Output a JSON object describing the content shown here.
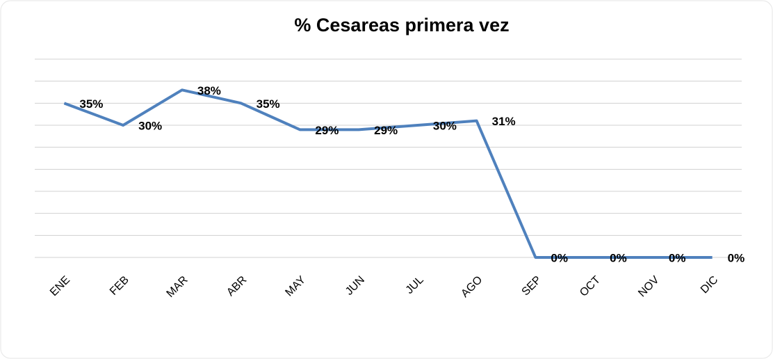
{
  "chart_data": {
    "type": "line",
    "title": "%  Cesareas primera vez",
    "categories": [
      "ENE",
      "FEB",
      "MAR",
      "ABR",
      "MAY",
      "JUN",
      "JUL",
      "AGO",
      "SEP",
      "OCT",
      "NOV",
      "DIC"
    ],
    "series": [
      {
        "name": "% Cesareas primera vez",
        "color": "#4f81bd",
        "values": [
          35,
          30,
          38,
          35,
          29,
          29,
          30,
          31,
          0,
          0,
          0,
          0
        ],
        "value_labels": [
          "35%",
          "30%",
          "38%",
          "35%",
          "29%",
          "29%",
          "30%",
          "31%",
          "0%",
          "0%",
          "0%",
          "0%"
        ]
      }
    ],
    "ylim": [
      0,
      45
    ],
    "yticks": [
      0,
      5,
      10,
      15,
      20,
      25,
      30,
      35,
      40,
      45
    ],
    "grid": true
  }
}
